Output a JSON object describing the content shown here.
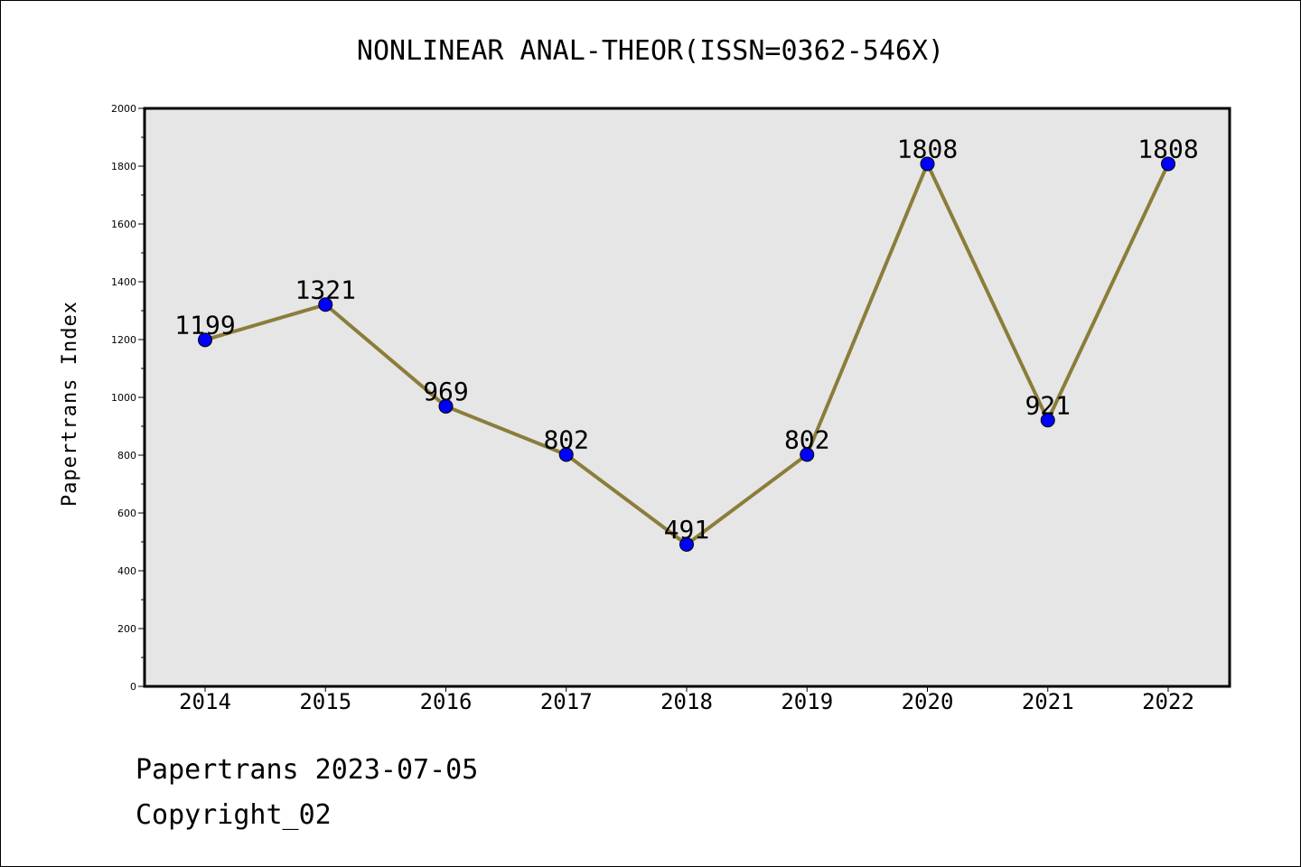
{
  "chart_data": {
    "type": "line",
    "title": "NONLINEAR ANAL-THEOR(ISSN=0362-546X)",
    "xlabel": "",
    "ylabel": "Papertrans Index",
    "ylim": [
      0,
      2000
    ],
    "yticks": [
      0,
      200,
      400,
      600,
      800,
      1000,
      1200,
      1400,
      1600,
      1800,
      2000
    ],
    "categories": [
      "2014",
      "2015",
      "2016",
      "2017",
      "2018",
      "2019",
      "2020",
      "2021",
      "2022"
    ],
    "series": [
      {
        "values": [
          1199,
          1321,
          969,
          802,
          491,
          802,
          1808,
          921,
          1808
        ]
      }
    ],
    "grid": false,
    "legend": "none",
    "colors": {
      "line": "#8b7d3a",
      "marker": "#0000ff",
      "plot_background": "#e6e6e6"
    }
  },
  "footer": {
    "date_line": "Papertrans 2023-07-05",
    "copyright": "Copyright_02"
  }
}
